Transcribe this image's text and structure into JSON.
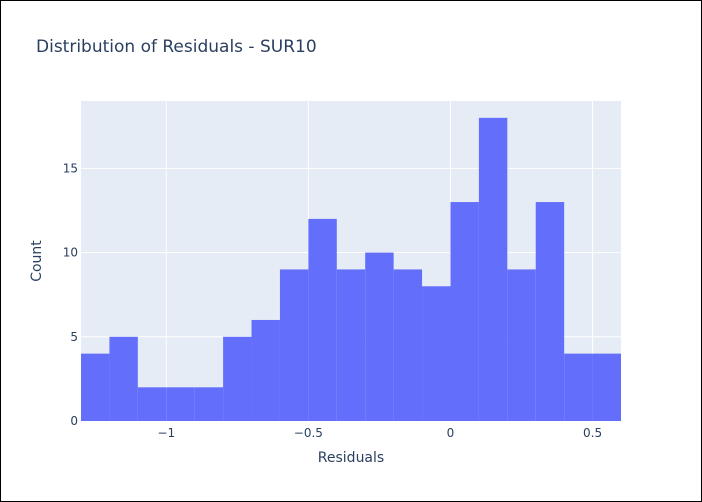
{
  "chart_data": {
    "type": "bar",
    "title": "Distribution of Residuals - SUR10",
    "xlabel": "Residuals",
    "ylabel": "Count",
    "xlim": [
      -1.3,
      0.6
    ],
    "ylim": [
      0,
      19
    ],
    "bin_width": 0.1,
    "bins": [
      {
        "start": -1.3,
        "end": -1.2,
        "count": 4
      },
      {
        "start": -1.2,
        "end": -1.1,
        "count": 5
      },
      {
        "start": -1.1,
        "end": -1.0,
        "count": 2
      },
      {
        "start": -1.0,
        "end": -0.9,
        "count": 2
      },
      {
        "start": -0.9,
        "end": -0.8,
        "count": 2
      },
      {
        "start": -0.8,
        "end": -0.7,
        "count": 5
      },
      {
        "start": -0.7,
        "end": -0.6,
        "count": 6
      },
      {
        "start": -0.6,
        "end": -0.5,
        "count": 9
      },
      {
        "start": -0.5,
        "end": -0.4,
        "count": 12
      },
      {
        "start": -0.4,
        "end": -0.3,
        "count": 9
      },
      {
        "start": -0.3,
        "end": -0.2,
        "count": 10
      },
      {
        "start": -0.2,
        "end": -0.1,
        "count": 9
      },
      {
        "start": -0.1,
        "end": 0.0,
        "count": 8
      },
      {
        "start": 0.0,
        "end": 0.1,
        "count": 13
      },
      {
        "start": 0.1,
        "end": 0.2,
        "count": 18
      },
      {
        "start": 0.2,
        "end": 0.3,
        "count": 9
      },
      {
        "start": 0.3,
        "end": 0.4,
        "count": 13
      },
      {
        "start": 0.4,
        "end": 0.5,
        "count": 4
      },
      {
        "start": 0.5,
        "end": 0.6,
        "count": 4
      }
    ],
    "xticks": [
      {
        "value": -1,
        "label": "−1"
      },
      {
        "value": -0.5,
        "label": "−0.5"
      },
      {
        "value": 0,
        "label": "0"
      },
      {
        "value": 0.5,
        "label": "0.5"
      }
    ],
    "yticks": [
      {
        "value": 0,
        "label": "0"
      },
      {
        "value": 5,
        "label": "5"
      },
      {
        "value": 10,
        "label": "10"
      },
      {
        "value": 15,
        "label": "15"
      }
    ],
    "grid": true,
    "colors": {
      "bar": "#636efa",
      "plot_bg": "#e5ecf6",
      "grid": "#ffffff",
      "text": "#2a3f5f"
    }
  }
}
